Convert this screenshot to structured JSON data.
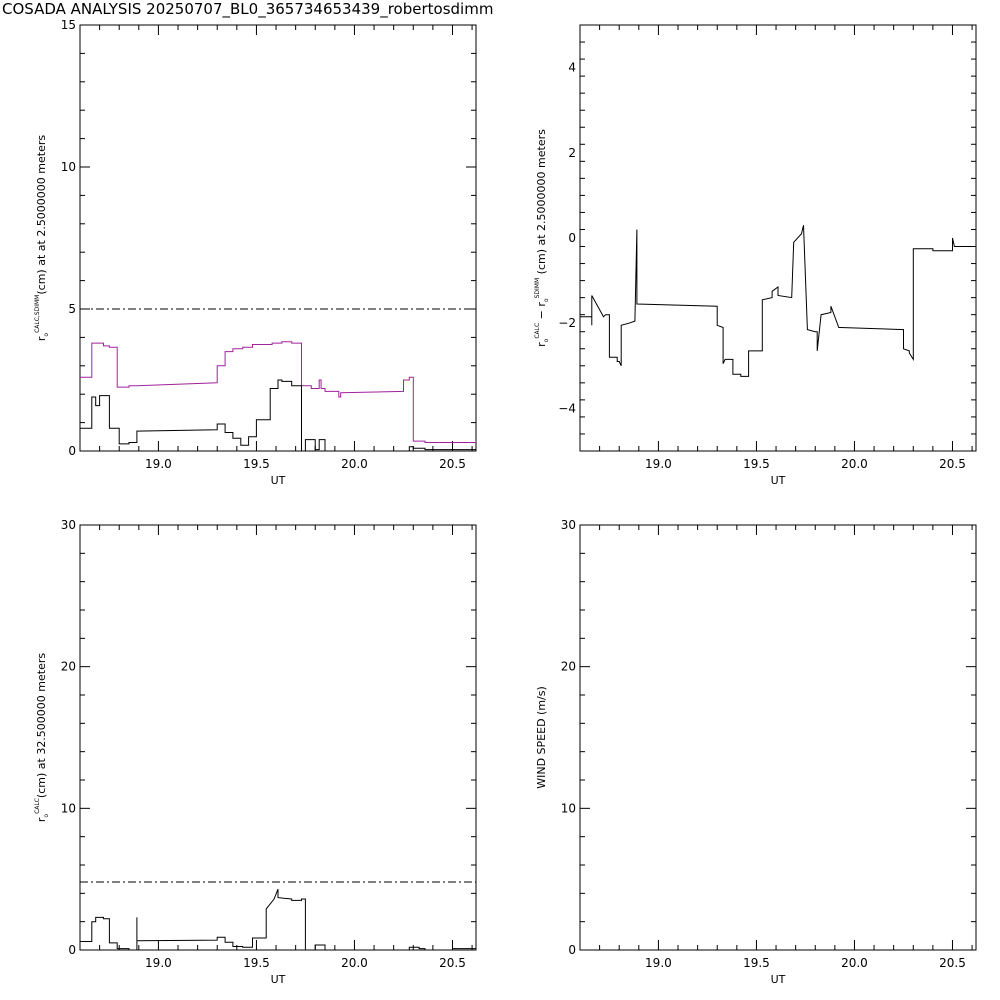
{
  "title": "COSADA ANALYSIS 20250707_BL0_365734653439_robertosdimm",
  "chart_data": [
    {
      "id": "tl",
      "type": "line",
      "xlabel": "UT",
      "ylabel_parts": {
        "r": "r",
        "o": "o",
        "sup": "CALC,SDIMM",
        "rest": "(cm) at  at 2.5000000 meters"
      },
      "xlim": [
        18.6,
        20.62
      ],
      "ylim": [
        0,
        15
      ],
      "xticks": [
        19.0,
        19.5,
        20.0,
        20.5
      ],
      "xtick_labels": [
        "19.0",
        "19.5",
        "20.0",
        "20.5"
      ],
      "yticks": [
        0,
        5,
        10,
        15
      ],
      "ytick_labels": [
        "0",
        "5",
        "10",
        "15"
      ],
      "reference_line": 5,
      "series": [
        {
          "color": "#a0229b",
          "x": [
            18.6,
            18.66,
            18.66,
            18.72,
            18.72,
            18.75,
            18.75,
            18.79,
            18.79,
            18.85,
            18.85,
            18.89,
            18.89,
            19.3,
            19.3,
            19.34,
            19.34,
            19.38,
            19.38,
            19.43,
            19.43,
            19.48,
            19.48,
            19.58,
            19.58,
            19.63,
            19.63,
            19.68,
            19.68,
            19.73,
            19.73,
            19.78,
            19.78,
            19.82,
            19.82,
            19.83,
            19.83,
            19.85,
            19.85,
            19.92,
            19.92,
            19.93,
            19.93,
            20.25,
            20.25,
            20.28,
            20.28,
            20.3,
            20.3,
            20.36,
            20.36,
            20.62,
            20.62
          ],
          "y": [
            2.6,
            2.6,
            3.8,
            3.8,
            3.7,
            3.7,
            3.65,
            3.65,
            2.25,
            2.25,
            2.3,
            2.3,
            2.3,
            2.4,
            3.0,
            3.0,
            3.5,
            3.5,
            3.6,
            3.6,
            3.65,
            3.65,
            3.75,
            3.75,
            3.8,
            3.8,
            3.85,
            3.85,
            3.8,
            3.8,
            2.3,
            2.3,
            2.2,
            2.2,
            2.5,
            2.5,
            2.2,
            2.2,
            2.1,
            2.1,
            1.9,
            1.9,
            2.05,
            2.1,
            2.5,
            2.5,
            2.6,
            2.6,
            0.35,
            0.35,
            0.3,
            0.3,
            0.35
          ]
        },
        {
          "color": "#000000",
          "x": [
            18.6,
            18.66,
            18.66,
            18.68,
            18.68,
            18.7,
            18.7,
            18.75,
            18.75,
            18.8,
            18.8,
            18.85,
            18.85,
            18.89,
            18.89,
            19.3,
            19.3,
            19.34,
            19.34,
            19.38,
            19.38,
            19.42,
            19.42,
            19.46,
            19.46,
            19.5,
            19.5,
            19.57,
            19.57,
            19.61,
            19.61,
            19.63,
            19.63,
            19.68,
            19.68,
            19.73,
            19.73,
            19.75,
            19.75,
            19.8,
            19.8,
            19.82,
            19.82,
            19.85,
            19.85,
            19.9,
            19.9,
            20.28,
            20.28,
            20.3,
            20.3,
            20.36,
            20.36,
            20.62
          ],
          "y": [
            0.8,
            0.8,
            1.9,
            1.9,
            1.6,
            1.6,
            1.95,
            1.95,
            0.8,
            0.8,
            0.25,
            0.25,
            0.3,
            0.3,
            0.7,
            0.75,
            0.95,
            0.95,
            0.65,
            0.65,
            0.45,
            0.45,
            0.2,
            0.2,
            0.5,
            0.5,
            1.1,
            1.1,
            2.2,
            2.2,
            2.5,
            2.5,
            2.45,
            2.45,
            2.3,
            2.3,
            0.0,
            0.0,
            0.4,
            0.4,
            0.05,
            0.05,
            0.4,
            0.4,
            0.0,
            0.0,
            0.0,
            0.0,
            0.15,
            0.15,
            0.1,
            0.1,
            0.05,
            0.05
          ]
        }
      ]
    },
    {
      "id": "tr",
      "type": "line",
      "xlabel": "UT",
      "ylabel_parts": {
        "r1": "r",
        "o1": "o",
        "sup1": "CALC",
        "mid": " − r",
        "o2": "o",
        "sup2": "SDIMM",
        "rest": " (cm) at 2.5000000 meters"
      },
      "xlim": [
        18.6,
        20.62
      ],
      "ylim": [
        -5,
        5
      ],
      "xticks": [
        19.0,
        19.5,
        20.0,
        20.5
      ],
      "xtick_labels": [
        "19.0",
        "19.5",
        "20.0",
        "20.5"
      ],
      "yticks": [
        -4,
        -2,
        0,
        2,
        4
      ],
      "ytick_labels": [
        "−4",
        "−2",
        "0",
        "2",
        "4"
      ],
      "series": [
        {
          "color": "#000000",
          "x": [
            18.6,
            18.66,
            18.66,
            18.66,
            18.72,
            18.72,
            18.73,
            18.75,
            18.75,
            18.79,
            18.79,
            18.8,
            18.81,
            18.81,
            18.81,
            18.85,
            18.85,
            18.88,
            18.88,
            18.89,
            18.89,
            19.3,
            19.3,
            19.33,
            19.33,
            19.34,
            19.38,
            19.38,
            19.42,
            19.42,
            19.46,
            19.46,
            19.53,
            19.53,
            19.58,
            19.58,
            19.61,
            19.61,
            19.68,
            19.68,
            19.69,
            19.73,
            19.73,
            19.74,
            19.76,
            19.76,
            19.8,
            19.81,
            19.81,
            19.83,
            19.83,
            19.88,
            19.88,
            19.92,
            19.93,
            19.93,
            20.25,
            20.25,
            20.28,
            20.28,
            20.3,
            20.3,
            20.4,
            20.4,
            20.5,
            20.5,
            20.51,
            20.51,
            20.62
          ],
          "y": [
            -1.85,
            -1.85,
            -2.05,
            -1.35,
            -1.85,
            -1.85,
            -1.8,
            -1.8,
            -2.8,
            -2.8,
            -2.9,
            -2.9,
            -3.0,
            -2.05,
            -2.05,
            -2.0,
            -2.0,
            -1.95,
            -1.95,
            0.2,
            -1.55,
            -1.6,
            -2.05,
            -2.1,
            -2.95,
            -2.85,
            -2.85,
            -3.2,
            -3.2,
            -3.25,
            -3.25,
            -2.65,
            -2.65,
            -1.45,
            -1.4,
            -1.25,
            -1.15,
            -1.35,
            -1.4,
            -1.4,
            -0.1,
            0.1,
            0.1,
            0.3,
            -2.15,
            -2.15,
            -2.2,
            -2.2,
            -2.65,
            -1.8,
            -1.8,
            -1.75,
            -1.6,
            -2.1,
            -2.1,
            -2.1,
            -2.15,
            -2.6,
            -2.65,
            -2.7,
            -2.85,
            -0.25,
            -0.25,
            -0.3,
            -0.3,
            0.0,
            -0.2,
            -0.2,
            -0.2
          ]
        }
      ]
    },
    {
      "id": "bl",
      "type": "line",
      "xlabel": "UT",
      "ylabel_parts": {
        "r": "r",
        "o": "o",
        "sup": "CALC",
        "rest": "(cm) at 32.500000 meters"
      },
      "xlim": [
        18.6,
        20.62
      ],
      "ylim": [
        0,
        30
      ],
      "xticks": [
        19.0,
        19.5,
        20.0,
        20.5
      ],
      "xtick_labels": [
        "19.0",
        "19.5",
        "20.0",
        "20.5"
      ],
      "yticks": [
        0,
        10,
        20,
        30
      ],
      "ytick_labels": [
        "0",
        "10",
        "20",
        "30"
      ],
      "reference_line": 4.8,
      "series": [
        {
          "color": "#000000",
          "x": [
            18.6,
            18.66,
            18.66,
            18.68,
            18.68,
            18.72,
            18.72,
            18.75,
            18.75,
            18.79,
            18.79,
            18.85,
            18.85,
            18.89,
            18.89,
            18.89,
            18.89,
            19.3,
            19.3,
            19.34,
            19.34,
            19.38,
            19.38,
            19.43,
            19.43,
            19.48,
            19.48,
            19.55,
            19.55,
            19.59,
            19.61,
            19.61,
            19.64,
            19.68,
            19.68,
            19.73,
            19.73,
            19.75,
            19.75,
            19.8,
            19.8,
            19.85,
            19.85,
            19.93,
            19.93,
            20.28,
            20.28,
            20.33,
            20.33,
            20.36,
            20.36,
            20.5,
            20.5,
            20.62
          ],
          "y": [
            0.6,
            0.6,
            2.0,
            2.0,
            2.3,
            2.3,
            2.2,
            2.2,
            0.5,
            0.5,
            0.1,
            0.1,
            0.0,
            0.0,
            2.3,
            0.6,
            0.65,
            0.7,
            0.9,
            0.9,
            0.55,
            0.55,
            0.25,
            0.25,
            0.2,
            0.2,
            0.85,
            0.85,
            2.9,
            3.6,
            4.3,
            3.7,
            3.65,
            3.6,
            3.5,
            3.5,
            3.6,
            3.6,
            0.0,
            0.0,
            0.35,
            0.35,
            0.0,
            0.0,
            0.0,
            0.0,
            0.2,
            0.2,
            0.1,
            0.1,
            0.0,
            0.0,
            0.1,
            0.1
          ]
        }
      ]
    },
    {
      "id": "br",
      "type": "line",
      "xlabel": "UT",
      "ylabel_parts": {
        "rest": "WIND SPEED (m/s)"
      },
      "xlim": [
        18.6,
        20.62
      ],
      "ylim": [
        0,
        30
      ],
      "xticks": [
        19.0,
        19.5,
        20.0,
        20.5
      ],
      "xtick_labels": [
        "19.0",
        "19.5",
        "20.0",
        "20.5"
      ],
      "yticks": [
        0,
        10,
        20,
        30
      ],
      "ytick_labels": [
        "0",
        "10",
        "20",
        "30"
      ],
      "series": []
    }
  ]
}
